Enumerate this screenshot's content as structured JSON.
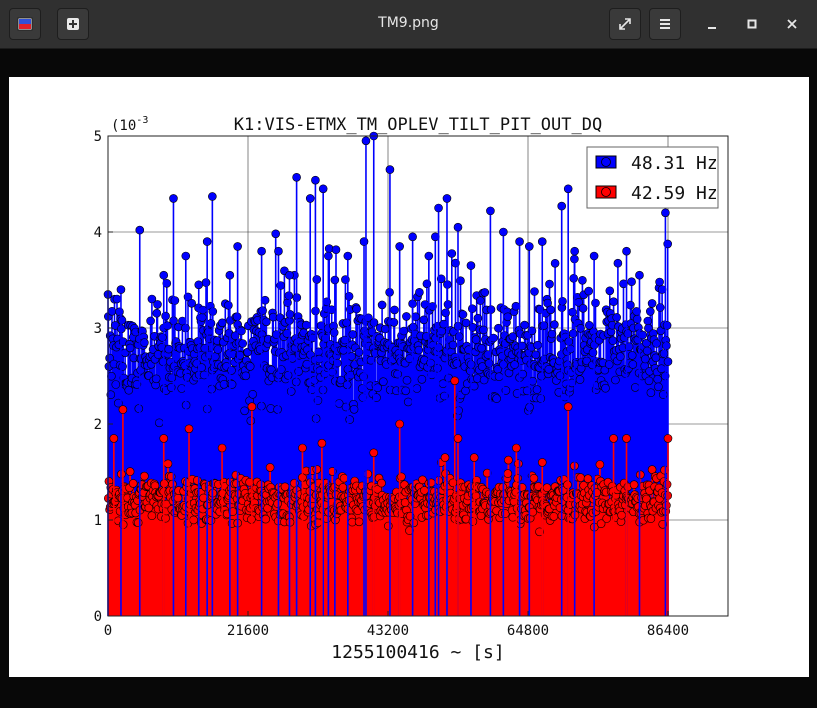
{
  "window": {
    "title": "TM9.png",
    "icons": {
      "app": "image-viewer-app-icon",
      "new": "new-image-plus-icon",
      "fullscreen": "fullscreen-expand-icon",
      "menu": "hamburger-menu-icon",
      "minimize": "minimize-icon",
      "maximize": "maximize-icon",
      "close": "close-icon"
    }
  },
  "chart_data": {
    "type": "scatter",
    "title": "K1:VIS-ETMX_TM_OPLEV_TILT_PIT_OUT_DQ",
    "xlabel": "1255100416 ~ [s]",
    "ylabel": "",
    "y_exponent_label": "(10",
    "y_exponent_value": "-3",
    "xlim": [
      0,
      86400
    ],
    "ylim": [
      0,
      5
    ],
    "x_ticks": [
      "0",
      "21600",
      "43200",
      "64800",
      "86400"
    ],
    "y_ticks": [
      "0",
      "1",
      "2",
      "3",
      "4",
      "5"
    ],
    "grid": true,
    "legend_position": "top-right",
    "colors": {
      "series1": "#0000ff",
      "series2": "#ff0000"
    },
    "series": [
      {
        "name": "48.31 Hz",
        "color": "#0000ff",
        "notable_peaks": [
          [
            0,
            3.35
          ],
          [
            2000,
            3.4
          ],
          [
            4900,
            4.02
          ],
          [
            8600,
            3.55
          ],
          [
            10100,
            4.35
          ],
          [
            12000,
            3.75
          ],
          [
            14000,
            3.45
          ],
          [
            15300,
            3.9
          ],
          [
            16100,
            4.37
          ],
          [
            18800,
            3.55
          ],
          [
            20000,
            3.85
          ],
          [
            23700,
            3.8
          ],
          [
            26300,
            3.8
          ],
          [
            28000,
            3.55
          ],
          [
            29100,
            4.57
          ],
          [
            31200,
            4.35
          ],
          [
            32000,
            4.54
          ],
          [
            33200,
            4.45
          ],
          [
            34000,
            3.75
          ],
          [
            35000,
            3.5
          ],
          [
            37000,
            3.75
          ],
          [
            39500,
            3.9
          ],
          [
            39800,
            4.95
          ],
          [
            41000,
            5.0
          ],
          [
            43500,
            4.65
          ],
          [
            45000,
            3.85
          ],
          [
            47000,
            3.95
          ],
          [
            49500,
            3.75
          ],
          [
            50500,
            3.95
          ],
          [
            51000,
            4.25
          ],
          [
            52300,
            4.35
          ],
          [
            54000,
            4.05
          ],
          [
            56000,
            3.65
          ],
          [
            59000,
            4.22
          ],
          [
            61000,
            4.0
          ],
          [
            63500,
            3.9
          ],
          [
            65000,
            3.85
          ],
          [
            67000,
            3.9
          ],
          [
            70000,
            4.27
          ],
          [
            71000,
            4.45
          ],
          [
            72000,
            3.8
          ],
          [
            75000,
            3.75
          ],
          [
            80000,
            3.8
          ],
          [
            82000,
            3.55
          ],
          [
            86000,
            4.2
          ],
          [
            86400,
            2.65
          ]
        ]
      },
      {
        "name": "42.59 Hz",
        "color": "#ff0000",
        "notable_peaks": [
          [
            900,
            1.85
          ],
          [
            2300,
            2.15
          ],
          [
            8600,
            1.85
          ],
          [
            12500,
            1.95
          ],
          [
            17600,
            1.75
          ],
          [
            22200,
            2.18
          ],
          [
            30000,
            1.75
          ],
          [
            33000,
            1.8
          ],
          [
            41000,
            1.7
          ],
          [
            45000,
            2.0
          ],
          [
            52000,
            1.65
          ],
          [
            53500,
            2.45
          ],
          [
            54000,
            1.85
          ],
          [
            56500,
            1.65
          ],
          [
            63000,
            1.75
          ],
          [
            67000,
            1.6
          ],
          [
            71000,
            2.18
          ],
          [
            78000,
            1.85
          ],
          [
            80000,
            1.85
          ],
          [
            86400,
            1.85
          ]
        ]
      }
    ]
  }
}
